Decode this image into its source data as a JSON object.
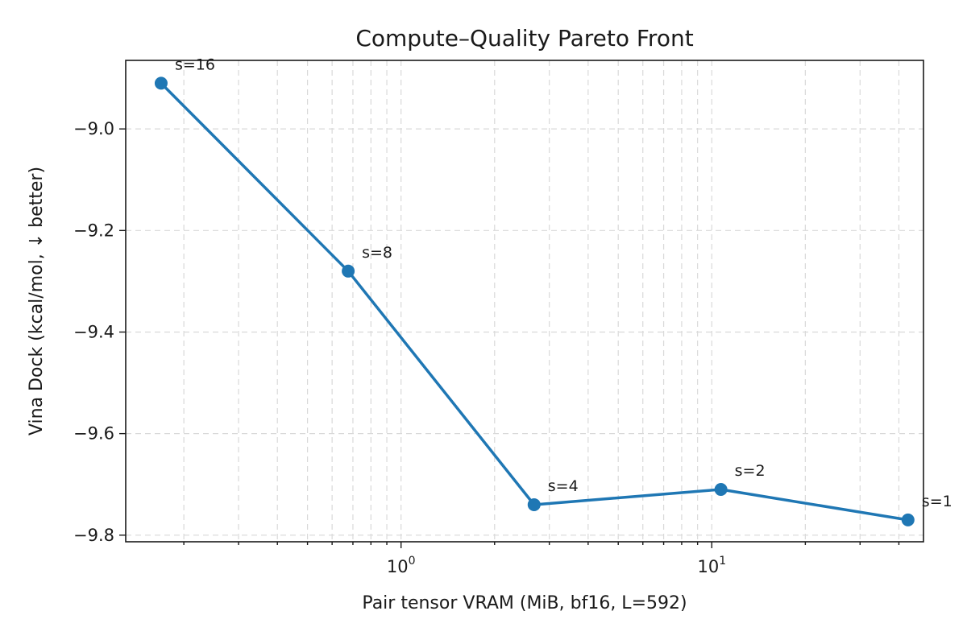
{
  "chart_data": {
    "type": "line",
    "title": "Compute–Quality Pareto Front",
    "xlabel": "Pair tensor VRAM (MiB, bf16, L=592)",
    "ylabel": "Vina Dock (kcal/mol, ↓ better)",
    "x_scale": "log",
    "xlim": [
      0.13,
      48
    ],
    "ylim": [
      -9.813,
      -8.865
    ],
    "x_ticks": [
      {
        "value": 1,
        "base": "10",
        "exp": "0"
      },
      {
        "value": 10,
        "base": "10",
        "exp": "1"
      }
    ],
    "y_ticks": [
      {
        "value": -9.8,
        "label": "−9.8"
      },
      {
        "value": -9.6,
        "label": "−9.6"
      },
      {
        "value": -9.4,
        "label": "−9.4"
      },
      {
        "value": -9.2,
        "label": "−9.2"
      },
      {
        "value": -9.0,
        "label": "−9.0"
      }
    ],
    "grid": true,
    "line_color": "#1f77b4",
    "series": [
      {
        "x": [
          0.169,
          0.676,
          2.68,
          10.7,
          42.8
        ],
        "y": [
          -8.91,
          -9.28,
          -9.74,
          -9.71,
          -9.77
        ],
        "labels": [
          "s=16",
          "s=8",
          "s=4",
          "s=2",
          "s=1"
        ]
      }
    ]
  }
}
